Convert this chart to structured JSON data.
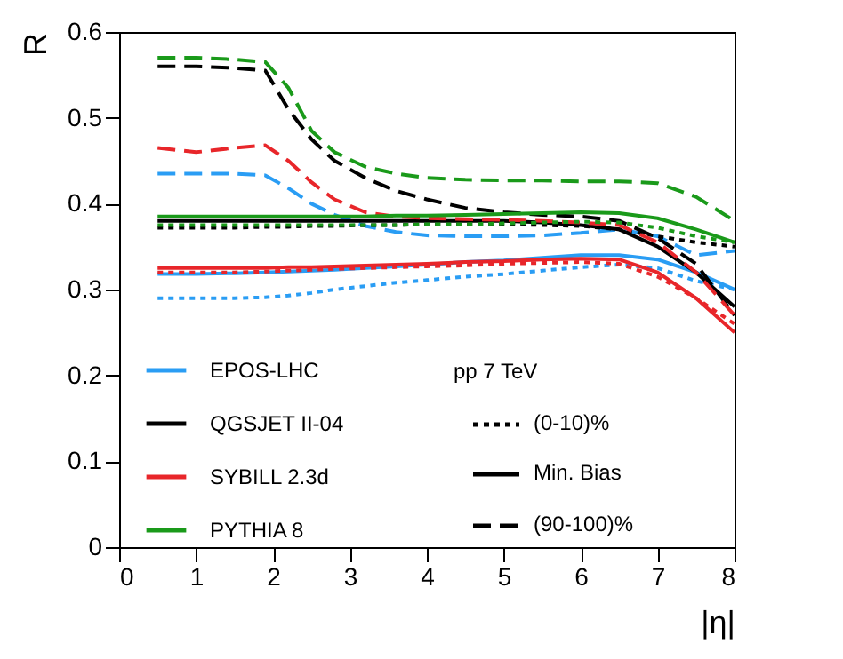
{
  "chart_data": {
    "type": "line",
    "xlabel": "|η|",
    "ylabel": "R",
    "xlim": [
      0,
      8
    ],
    "ylim": [
      0,
      0.6
    ],
    "xticks": [
      0,
      1,
      2,
      3,
      4,
      5,
      6,
      7,
      8
    ],
    "yticks": [
      0,
      0.1,
      0.2,
      0.3,
      0.4,
      0.5,
      0.6
    ],
    "grid": false,
    "legend": "bottom left",
    "marker": "none",
    "x": [
      0.5,
      1,
      1.5,
      1.9,
      2.2,
      2.5,
      2.8,
      3.2,
      3.6,
      4,
      4.5,
      5,
      5.5,
      6,
      6.5,
      7,
      7.5,
      8
    ],
    "series": [
      {
        "color": "#2a9df4",
        "line_style": "dotted",
        "values": [
          0.29,
          0.29,
          0.29,
          0.291,
          0.293,
          0.296,
          0.3,
          0.304,
          0.308,
          0.311,
          0.315,
          0.318,
          0.322,
          0.326,
          0.329,
          0.325,
          0.31,
          0.3
        ]
      },
      {
        "name": "EPOS-LHC",
        "color": "#2a9df4",
        "line_style": "solid",
        "values": [
          0.318,
          0.318,
          0.319,
          0.32,
          0.321,
          0.322,
          0.323,
          0.325,
          0.327,
          0.329,
          0.332,
          0.334,
          0.337,
          0.34,
          0.34,
          0.335,
          0.32,
          0.3
        ]
      },
      {
        "color": "#2a9df4",
        "line_style": "dashed",
        "values": [
          0.435,
          0.435,
          0.435,
          0.433,
          0.418,
          0.4,
          0.387,
          0.374,
          0.367,
          0.363,
          0.362,
          0.362,
          0.363,
          0.366,
          0.37,
          0.362,
          0.34,
          0.345
        ]
      },
      {
        "color": "#000000",
        "line_style": "dotted",
        "values": [
          0.372,
          0.372,
          0.372,
          0.373,
          0.373,
          0.374,
          0.374,
          0.375,
          0.375,
          0.376,
          0.376,
          0.376,
          0.375,
          0.374,
          0.37,
          0.362,
          0.355,
          0.35
        ]
      },
      {
        "name": "QGSJET II-04",
        "color": "#000000",
        "line_style": "solid",
        "values": [
          0.38,
          0.38,
          0.38,
          0.38,
          0.38,
          0.38,
          0.38,
          0.38,
          0.38,
          0.38,
          0.38,
          0.38,
          0.378,
          0.375,
          0.37,
          0.35,
          0.32,
          0.28
        ]
      },
      {
        "color": "#000000",
        "line_style": "dashed",
        "values": [
          0.56,
          0.56,
          0.558,
          0.555,
          0.51,
          0.475,
          0.45,
          0.43,
          0.415,
          0.405,
          0.395,
          0.39,
          0.387,
          0.385,
          0.38,
          0.36,
          0.33,
          0.27
        ]
      },
      {
        "color": "#e8262a",
        "line_style": "dotted",
        "values": [
          0.32,
          0.32,
          0.32,
          0.321,
          0.322,
          0.323,
          0.324,
          0.325,
          0.326,
          0.327,
          0.328,
          0.33,
          0.331,
          0.332,
          0.33,
          0.315,
          0.29,
          0.26
        ]
      },
      {
        "name": "SYBILL 2.3d",
        "color": "#e8262a",
        "line_style": "solid",
        "values": [
          0.325,
          0.325,
          0.325,
          0.325,
          0.326,
          0.326,
          0.327,
          0.328,
          0.329,
          0.33,
          0.332,
          0.333,
          0.335,
          0.336,
          0.335,
          0.32,
          0.29,
          0.25
        ]
      },
      {
        "color": "#e8262a",
        "line_style": "dashed",
        "values": [
          0.465,
          0.46,
          0.465,
          0.468,
          0.45,
          0.425,
          0.405,
          0.39,
          0.385,
          0.383,
          0.382,
          0.381,
          0.38,
          0.378,
          0.375,
          0.355,
          0.32,
          0.27
        ]
      },
      {
        "color": "#1a9a1a",
        "line_style": "dotted",
        "values": [
          0.375,
          0.375,
          0.375,
          0.375,
          0.375,
          0.375,
          0.375,
          0.375,
          0.375,
          0.376,
          0.376,
          0.377,
          0.378,
          0.379,
          0.378,
          0.372,
          0.362,
          0.355
        ]
      },
      {
        "name": "PYTHIA 8",
        "color": "#1a9a1a",
        "line_style": "solid",
        "values": [
          0.385,
          0.385,
          0.385,
          0.385,
          0.385,
          0.385,
          0.385,
          0.385,
          0.386,
          0.386,
          0.387,
          0.388,
          0.389,
          0.39,
          0.389,
          0.383,
          0.37,
          0.355
        ]
      },
      {
        "color": "#1a9a1a",
        "line_style": "dashed",
        "values": [
          0.57,
          0.57,
          0.568,
          0.565,
          0.535,
          0.485,
          0.46,
          0.443,
          0.435,
          0.43,
          0.428,
          0.427,
          0.427,
          0.426,
          0.426,
          0.424,
          0.408,
          0.38
        ]
      }
    ],
    "annotations": [
      "pp 7 TeV",
      "(0-10)%",
      "Min. Bias",
      "(90-100)%"
    ]
  }
}
